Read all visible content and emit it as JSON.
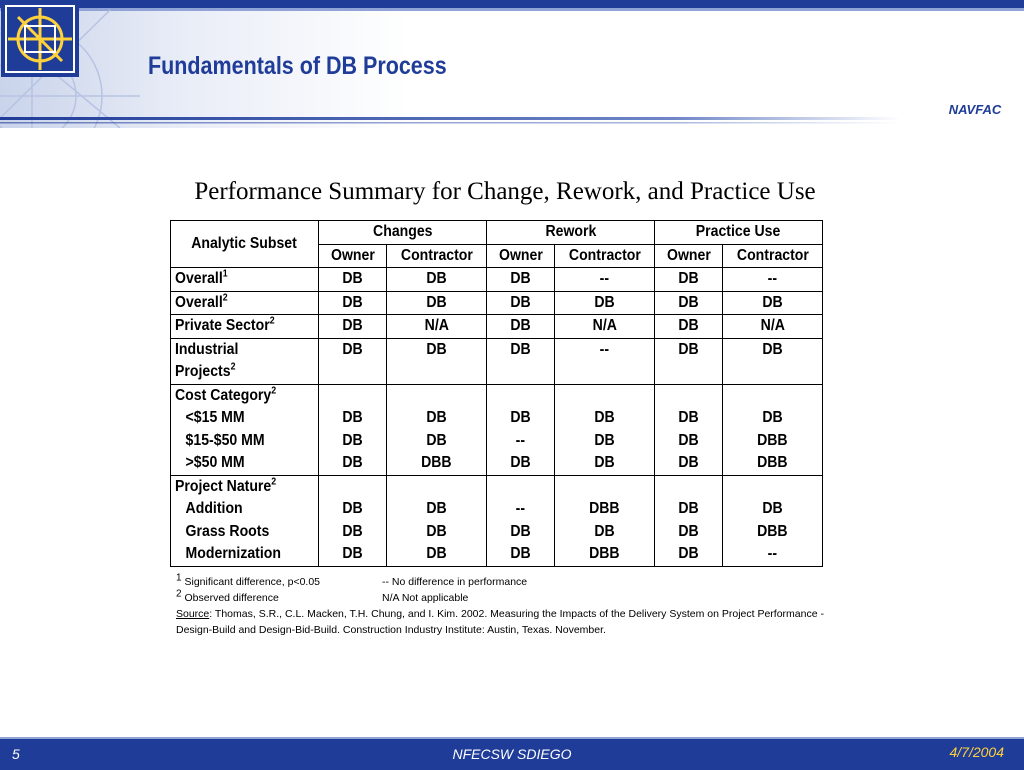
{
  "slide": {
    "title": "Fundamentals of DB Process",
    "logo_text": "NAVFAC",
    "subtitle": "Performance Summary for Change, Rework, and Practice Use"
  },
  "table": {
    "corner": "Analytic Subset",
    "groups": [
      "Changes",
      "Rework",
      "Practice Use"
    ],
    "subheaders": [
      "Owner",
      "Contractor",
      "Owner",
      "Contractor",
      "Owner",
      "Contractor"
    ],
    "rows": [
      {
        "label": "Overall",
        "sup": "1",
        "values": [
          "DB",
          "DB",
          "DB",
          "--",
          "DB",
          "--"
        ]
      },
      {
        "label": "Overall",
        "sup": "2",
        "values": [
          "DB",
          "DB",
          "DB",
          "DB",
          "DB",
          "DB"
        ]
      },
      {
        "label": "Private Sector",
        "sup": "2",
        "values": [
          "DB",
          "N/A",
          "DB",
          "N/A",
          "DB",
          "N/A"
        ]
      },
      {
        "label": "Industrial",
        "label2": "Projects",
        "sup": "2",
        "values": [
          "DB",
          "DB",
          "DB",
          "--",
          "DB",
          "DB"
        ]
      }
    ],
    "groups_rows": [
      {
        "label": "Cost Category",
        "sup": "2",
        "items": [
          {
            "label": "<$15 MM",
            "values": [
              "DB",
              "DB",
              "DB",
              "DB",
              "DB",
              "DB"
            ]
          },
          {
            "label": "$15-$50 MM",
            "values": [
              "DB",
              "DB",
              "--",
              "DB",
              "DB",
              "DBB"
            ]
          },
          {
            "label": ">$50 MM",
            "values": [
              "DB",
              "DBB",
              "DB",
              "DB",
              "DB",
              "DBB"
            ]
          }
        ]
      },
      {
        "label": "Project Nature",
        "sup": "2",
        "items": [
          {
            "label": "Addition",
            "values": [
              "DB",
              "DB",
              "--",
              "DBB",
              "DB",
              "DB"
            ]
          },
          {
            "label": "Grass Roots",
            "values": [
              "DB",
              "DB",
              "DB",
              "DB",
              "DB",
              "DBB"
            ]
          },
          {
            "label": "Modernization",
            "values": [
              "DB",
              "DB",
              "DB",
              "DBB",
              "DB",
              "--"
            ]
          }
        ]
      }
    ]
  },
  "notes": {
    "n1_sup": "1",
    "n1_text": " Significant difference, p<0.05",
    "n1_right": "-- No difference in performance",
    "n2_sup": "2",
    "n2_text": " Observed difference",
    "n2_right": "N/A Not applicable",
    "source_label": "Source",
    "source_text": ": Thomas, S.R., C.L. Macken, T.H. Chung, and I. Kim. 2002. Measuring the Impacts of the Delivery System on Project Performance - Design-Build and Design-Bid-Build. Construction Industry Institute: Austin, Texas. November."
  },
  "footer": {
    "page": "5",
    "center": "NFECSW SDIEGO",
    "date": "4/7/2004"
  },
  "colors": {
    "brand_blue": "#1f3c99",
    "footer_date": "#ffd23c"
  }
}
